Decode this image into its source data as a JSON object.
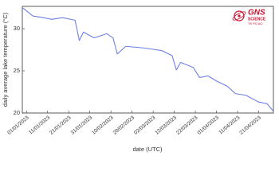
{
  "chart_data": {
    "type": "line",
    "ylabel": "daily average lake temperature (°C)",
    "xlabel": "date (UTC)",
    "logo": {
      "name": "GNS",
      "subtitle": "SCIENCE",
      "tagline": "TE PŪ AO"
    },
    "x": [
      "30/12/2022",
      "04/01/2023",
      "09/01/2023",
      "13/01/2023",
      "18/01/2023",
      "24/01/2023",
      "26/01/2023",
      "28/01/2023",
      "02/02/2023",
      "08/02/2023",
      "11/02/2023",
      "13/02/2023",
      "17/02/2023",
      "26/02/2023",
      "06/03/2023",
      "11/03/2023",
      "13/03/2023",
      "15/03/2023",
      "21/03/2023",
      "24/03/2023",
      "28/03/2023",
      "01/04/2023",
      "06/04/2023",
      "10/04/2023",
      "15/04/2023",
      "21/04/2023",
      "25/04/2023",
      "28/04/2023"
    ],
    "series": [
      {
        "color": "#6f80e8",
        "values": [
          32.5,
          31.5,
          31.3,
          31.1,
          31.3,
          31.0,
          28.6,
          29.6,
          28.9,
          29.4,
          28.9,
          27.0,
          27.9,
          27.7,
          27.4,
          26.8,
          25.1,
          26.0,
          25.4,
          24.2,
          24.4,
          23.8,
          23.2,
          22.3,
          22.1,
          21.3,
          21.1,
          20.2
        ]
      }
    ],
    "xlim": [
      "30/12/2022",
      "28/04/2023"
    ],
    "xticks": [
      "01/01/2023",
      "11/01/2023",
      "21/01/2023",
      "31/01/2023",
      "10/02/2023",
      "20/02/2023",
      "02/03/2023",
      "12/03/2023",
      "22/03/2023",
      "01/04/2023",
      "11/04/2023",
      "21/04/2023"
    ],
    "ylim": [
      20,
      32.64
    ],
    "yticks": [
      20,
      25,
      30
    ],
    "grid": false
  }
}
